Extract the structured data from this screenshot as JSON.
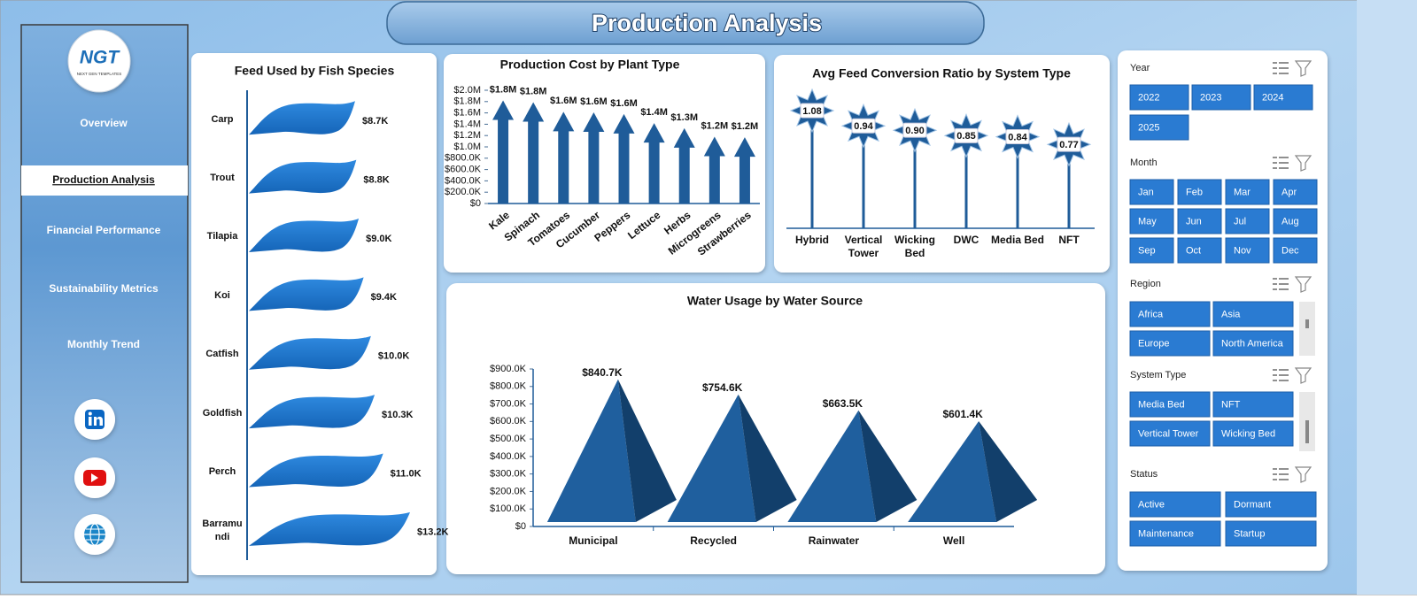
{
  "header": {
    "title": "Production Analysis"
  },
  "logo": {
    "text": "NGT",
    "tagline": "NEXT GEN TEMPLATES"
  },
  "nav": {
    "items": [
      {
        "label": "Overview"
      },
      {
        "label": "Production Analysis",
        "selected": true
      },
      {
        "label": "Financial Performance"
      },
      {
        "label": "Sustainability Metrics"
      },
      {
        "label": "Monthly Trend"
      }
    ]
  },
  "chart_data": [
    {
      "type": "bar",
      "orientation": "horizontal",
      "shape": "wave",
      "title": "Feed Used by Fish Species",
      "color": "#1f78d1",
      "categories": [
        "Carp",
        "Trout",
        "Tilapia",
        "Koi",
        "Catfish",
        "Goldfish",
        "Perch",
        "Barramundi"
      ],
      "values": [
        8700,
        8800,
        9000,
        9400,
        10000,
        10300,
        11000,
        13200
      ],
      "value_labels": [
        "$8.7K",
        "$8.8K",
        "$9.0K",
        "$9.4K",
        "$10.0K",
        "$10.3K",
        "$11.0K",
        "$13.2K"
      ]
    },
    {
      "type": "bar",
      "shape": "arrow",
      "title": "Production Cost by Plant Type",
      "color": "#1f5c99",
      "categories": [
        "Kale",
        "Spinach",
        "Tomatoes",
        "Cucumber",
        "Peppers",
        "Lettuce",
        "Herbs",
        "Microgreens",
        "Strawberries"
      ],
      "values": [
        1820000,
        1790000,
        1620000,
        1610000,
        1580000,
        1420000,
        1330000,
        1180000,
        1170000
      ],
      "value_labels": [
        "$1.8M",
        "$1.8M",
        "$1.6M",
        "$1.6M",
        "$1.6M",
        "$1.4M",
        "$1.3M",
        "$1.2M",
        "$1.2M"
      ],
      "ylim": [
        0,
        2000000
      ],
      "yticks": [
        {
          "value": 0,
          "label": "$0"
        },
        {
          "value": 200000,
          "label": "$200.0K"
        },
        {
          "value": 400000,
          "label": "$400.0K"
        },
        {
          "value": 600000,
          "label": "$600.0K"
        },
        {
          "value": 800000,
          "label": "$800.0K"
        },
        {
          "value": 1000000,
          "label": "$1.0M"
        },
        {
          "value": 1200000,
          "label": "$1.2M"
        },
        {
          "value": 1400000,
          "label": "$1.4M"
        },
        {
          "value": 1600000,
          "label": "$1.6M"
        },
        {
          "value": 1800000,
          "label": "$1.8M"
        },
        {
          "value": 2000000,
          "label": "$2.0M"
        }
      ]
    },
    {
      "type": "lollipop",
      "title": "Avg Feed Conversion Ratio by System Type",
      "color": "#1f5c99",
      "categories": [
        "Hybrid",
        "Vertical Tower",
        "Wicking Bed",
        "DWC",
        "Media Bed",
        "NFT"
      ],
      "values": [
        1.08,
        0.94,
        0.9,
        0.85,
        0.84,
        0.77
      ],
      "value_labels": [
        "1.08",
        "0.94",
        "0.90",
        "0.85",
        "0.84",
        "0.77"
      ]
    },
    {
      "type": "bar",
      "shape": "pyramid",
      "title": "Water Usage by Water Source",
      "color": "#1f5f9e",
      "categories": [
        "Municipal",
        "Recycled",
        "Rainwater",
        "Well"
      ],
      "values": [
        840700,
        754600,
        663500,
        601400
      ],
      "value_labels": [
        "$840.7K",
        "$754.6K",
        "$663.5K",
        "$601.4K"
      ],
      "ylim": [
        0,
        900000
      ],
      "yticks": [
        {
          "value": 0,
          "label": "$0"
        },
        {
          "value": 100000,
          "label": "$100.0K"
        },
        {
          "value": 200000,
          "label": "$200.0K"
        },
        {
          "value": 300000,
          "label": "$300.0K"
        },
        {
          "value": 400000,
          "label": "$400.0K"
        },
        {
          "value": 500000,
          "label": "$500.0K"
        },
        {
          "value": 600000,
          "label": "$600.0K"
        },
        {
          "value": 700000,
          "label": "$700.0K"
        },
        {
          "value": 800000,
          "label": "$800.0K"
        },
        {
          "value": 900000,
          "label": "$900.0K"
        }
      ]
    }
  ],
  "slicers": [
    {
      "title": "Year",
      "items": [
        "2022",
        "2023",
        "2024",
        "2025"
      ]
    },
    {
      "title": "Month",
      "items": [
        "Jan",
        "Feb",
        "Mar",
        "Apr",
        "May",
        "Jun",
        "Jul",
        "Aug",
        "Sep",
        "Oct",
        "Nov",
        "Dec"
      ]
    },
    {
      "title": "Region",
      "items": [
        "Africa",
        "Asia",
        "Europe",
        "North America"
      ]
    },
    {
      "title": "System Type",
      "items": [
        "Media Bed",
        "NFT",
        "Vertical Tower",
        "Wicking Bed"
      ]
    },
    {
      "title": "Status",
      "items": [
        "Active",
        "Dormant",
        "Maintenance",
        "Startup"
      ]
    }
  ]
}
